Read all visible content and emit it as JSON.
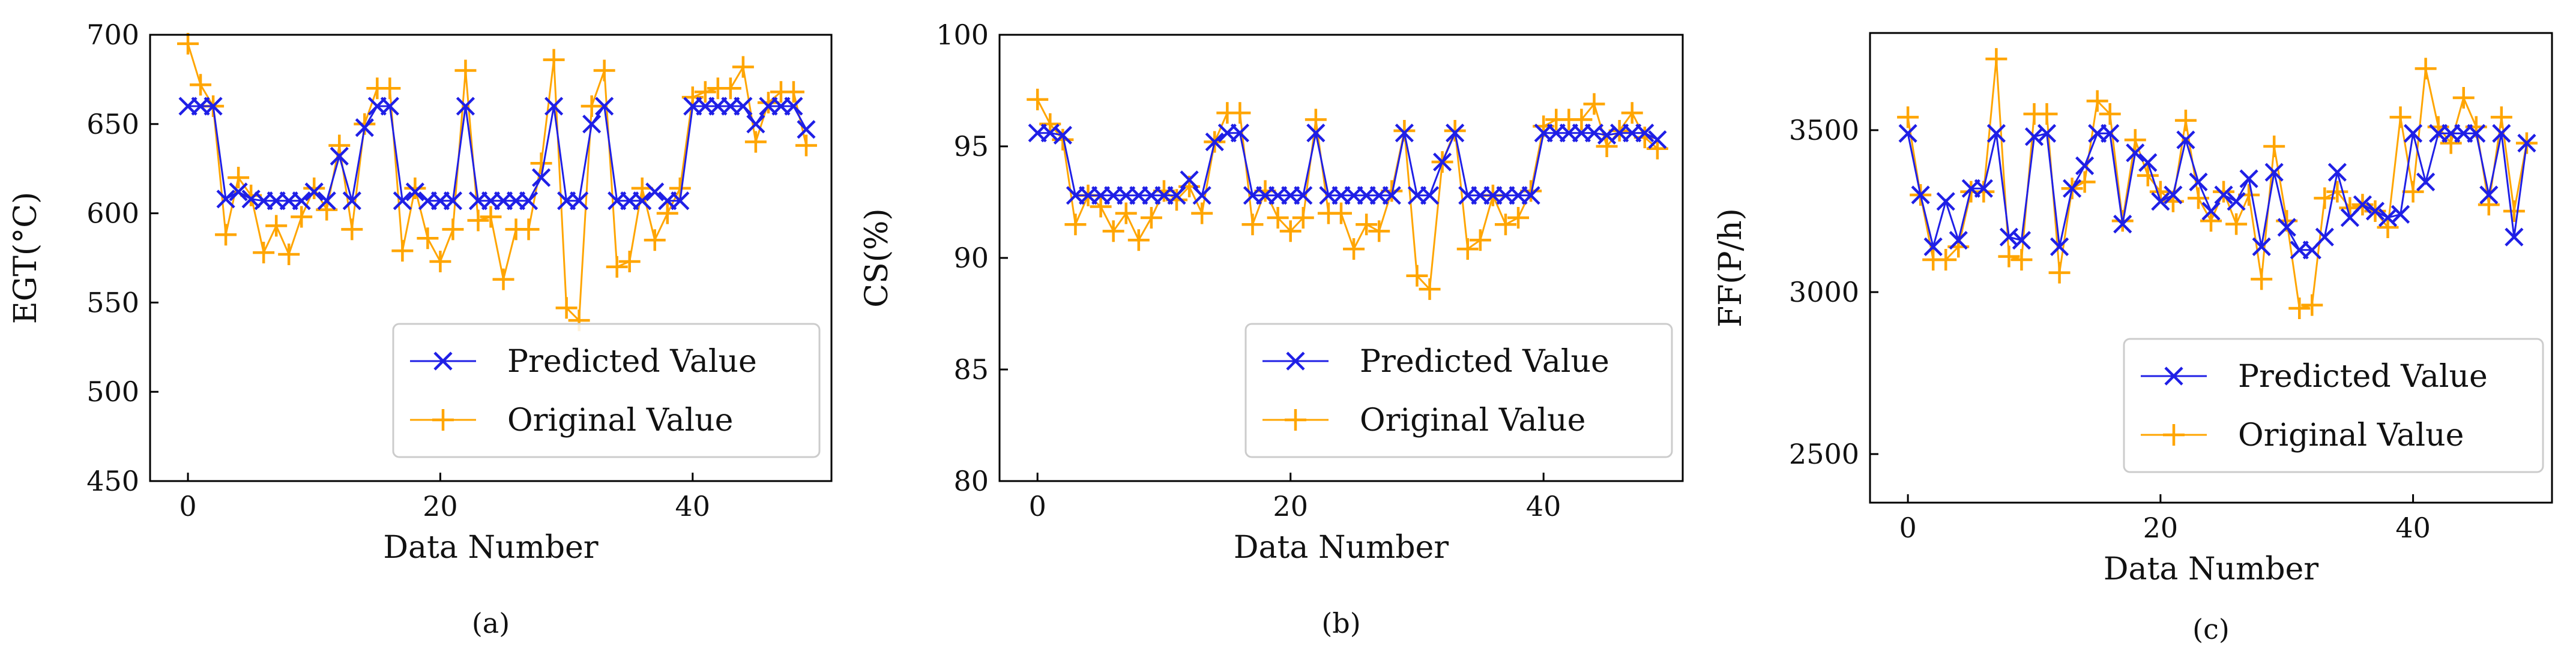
{
  "colors": {
    "predicted": "#1f1fe6",
    "original": "#ffa500",
    "axis": "#000000",
    "legend_border": "#cccccc"
  },
  "chart_data": [
    {
      "type": "line",
      "panel_label": "(a)",
      "xlabel": "Data Number",
      "ylabel": "EGT(°C)",
      "xlim": [
        -3,
        51
      ],
      "ylim": [
        450,
        700
      ],
      "xticks": [
        0,
        20,
        40
      ],
      "yticks": [
        450,
        500,
        550,
        600,
        650,
        700
      ],
      "legend_position": "lower-right",
      "series": [
        {
          "name": "Predicted Value",
          "marker": "x",
          "x": [
            0,
            1,
            2,
            3,
            4,
            5,
            6,
            7,
            8,
            9,
            10,
            11,
            12,
            13,
            14,
            15,
            16,
            17,
            18,
            19,
            20,
            21,
            22,
            23,
            24,
            25,
            26,
            27,
            28,
            29,
            30,
            31,
            32,
            33,
            34,
            35,
            36,
            37,
            38,
            39,
            40,
            41,
            42,
            43,
            44,
            45,
            46,
            47,
            48,
            49
          ],
          "values": [
            660,
            660,
            660,
            608,
            612,
            608,
            607,
            607,
            607,
            607,
            612,
            607,
            632,
            607,
            648,
            660,
            660,
            607,
            612,
            607,
            607,
            607,
            660,
            607,
            607,
            607,
            607,
            607,
            620,
            660,
            607,
            607,
            650,
            660,
            607,
            607,
            607,
            612,
            607,
            607,
            660,
            660,
            660,
            660,
            660,
            650,
            660,
            660,
            660,
            647
          ]
        },
        {
          "name": "Original Value",
          "marker": "+",
          "x": [
            0,
            1,
            2,
            3,
            4,
            5,
            6,
            7,
            8,
            9,
            10,
            11,
            12,
            13,
            14,
            15,
            16,
            17,
            18,
            19,
            20,
            21,
            22,
            23,
            24,
            25,
            26,
            27,
            28,
            29,
            30,
            31,
            32,
            33,
            34,
            35,
            36,
            37,
            38,
            39,
            40,
            41,
            42,
            43,
            44,
            45,
            46,
            47,
            48,
            49
          ],
          "values": [
            695,
            672,
            660,
            588,
            620,
            610,
            578,
            593,
            577,
            598,
            614,
            602,
            638,
            591,
            650,
            670,
            670,
            579,
            614,
            586,
            573,
            591,
            680,
            596,
            598,
            563,
            591,
            591,
            628,
            686,
            547,
            540,
            660,
            680,
            570,
            573,
            614,
            585,
            600,
            614,
            665,
            668,
            670,
            670,
            682,
            640,
            662,
            668,
            668,
            638
          ]
        }
      ]
    },
    {
      "type": "line",
      "panel_label": "(b)",
      "xlabel": "Data Number",
      "ylabel": "CS(%)",
      "xlim": [
        -3,
        51
      ],
      "ylim": [
        80,
        100
      ],
      "xticks": [
        0,
        20,
        40
      ],
      "yticks": [
        80,
        85,
        90,
        95,
        100
      ],
      "legend_position": "lower-right",
      "series": [
        {
          "name": "Predicted Value",
          "marker": "x",
          "x": [
            0,
            1,
            2,
            3,
            4,
            5,
            6,
            7,
            8,
            9,
            10,
            11,
            12,
            13,
            14,
            15,
            16,
            17,
            18,
            19,
            20,
            21,
            22,
            23,
            24,
            25,
            26,
            27,
            28,
            29,
            30,
            31,
            32,
            33,
            34,
            35,
            36,
            37,
            38,
            39,
            40,
            41,
            42,
            43,
            44,
            45,
            46,
            47,
            48,
            49
          ],
          "values": [
            95.6,
            95.6,
            95.5,
            92.8,
            92.8,
            92.8,
            92.8,
            92.8,
            92.8,
            92.8,
            92.8,
            92.8,
            93.5,
            92.8,
            95.2,
            95.6,
            95.6,
            92.8,
            92.8,
            92.8,
            92.8,
            92.8,
            95.6,
            92.8,
            92.8,
            92.8,
            92.8,
            92.8,
            92.8,
            95.6,
            92.8,
            92.8,
            94.3,
            95.6,
            92.8,
            92.8,
            92.8,
            92.8,
            92.8,
            92.8,
            95.6,
            95.6,
            95.6,
            95.6,
            95.6,
            95.5,
            95.6,
            95.6,
            95.6,
            95.3
          ]
        },
        {
          "name": "Original Value",
          "marker": "+",
          "x": [
            0,
            1,
            2,
            3,
            4,
            5,
            6,
            7,
            8,
            9,
            10,
            11,
            12,
            13,
            14,
            15,
            16,
            17,
            18,
            19,
            20,
            21,
            22,
            23,
            24,
            25,
            26,
            27,
            28,
            29,
            30,
            31,
            32,
            33,
            34,
            35,
            36,
            37,
            38,
            39,
            40,
            41,
            42,
            43,
            44,
            45,
            46,
            47,
            48,
            49
          ],
          "values": [
            97.1,
            96.0,
            95.3,
            91.5,
            92.8,
            92.3,
            91.2,
            92.0,
            90.8,
            91.8,
            93.0,
            92.6,
            93.2,
            92.0,
            95.2,
            96.5,
            96.5,
            91.5,
            93.0,
            91.8,
            91.2,
            91.8,
            96.2,
            92.0,
            92.0,
            90.4,
            91.5,
            91.2,
            93.0,
            95.7,
            89.2,
            88.6,
            94.3,
            95.7,
            90.4,
            90.8,
            92.8,
            91.5,
            91.8,
            93.0,
            95.9,
            96.2,
            96.2,
            96.2,
            96.9,
            95.0,
            95.7,
            96.5,
            95.4,
            94.9
          ]
        }
      ]
    },
    {
      "type": "line",
      "panel_label": "(c)",
      "xlabel": "Data Number",
      "ylabel": "FF(P/h)",
      "xlim": [
        -3,
        51
      ],
      "ylim": [
        2350,
        3800
      ],
      "xticks": [
        0,
        20,
        40
      ],
      "yticks": [
        2500,
        3000,
        3500
      ],
      "legend_position": "lower-right",
      "series": [
        {
          "name": "Predicted Value",
          "marker": "x",
          "x": [
            0,
            1,
            2,
            3,
            4,
            5,
            6,
            7,
            8,
            9,
            10,
            11,
            12,
            13,
            14,
            15,
            16,
            17,
            18,
            19,
            20,
            21,
            22,
            23,
            24,
            25,
            26,
            27,
            28,
            29,
            30,
            31,
            32,
            33,
            34,
            35,
            36,
            37,
            38,
            39,
            40,
            41,
            42,
            43,
            44,
            45,
            46,
            47,
            48,
            49
          ],
          "values": [
            3490,
            3300,
            3140,
            3280,
            3160,
            3320,
            3320,
            3490,
            3170,
            3160,
            3480,
            3490,
            3140,
            3320,
            3390,
            3490,
            3490,
            3210,
            3430,
            3400,
            3280,
            3300,
            3470,
            3340,
            3250,
            3300,
            3280,
            3350,
            3140,
            3370,
            3200,
            3130,
            3130,
            3170,
            3370,
            3230,
            3270,
            3250,
            3230,
            3240,
            3490,
            3340,
            3490,
            3490,
            3490,
            3490,
            3300,
            3490,
            3170,
            3460
          ]
        },
        {
          "name": "Original Value",
          "marker": "+",
          "x": [
            0,
            1,
            2,
            3,
            4,
            5,
            6,
            7,
            8,
            9,
            10,
            11,
            12,
            13,
            14,
            15,
            16,
            17,
            18,
            19,
            20,
            21,
            22,
            23,
            24,
            25,
            26,
            27,
            28,
            29,
            30,
            31,
            32,
            33,
            34,
            35,
            36,
            37,
            38,
            39,
            40,
            41,
            42,
            43,
            44,
            45,
            46,
            47,
            48,
            49
          ],
          "values": [
            3540,
            3300,
            3100,
            3100,
            3140,
            3310,
            3310,
            3720,
            3110,
            3100,
            3550,
            3550,
            3060,
            3320,
            3340,
            3590,
            3550,
            3220,
            3470,
            3360,
            3310,
            3280,
            3530,
            3290,
            3220,
            3310,
            3210,
            3300,
            3040,
            3450,
            3220,
            2950,
            2960,
            3290,
            3310,
            3260,
            3270,
            3250,
            3200,
            3540,
            3310,
            3690,
            3510,
            3460,
            3600,
            3510,
            3270,
            3540,
            3250,
            3460
          ]
        }
      ]
    }
  ]
}
